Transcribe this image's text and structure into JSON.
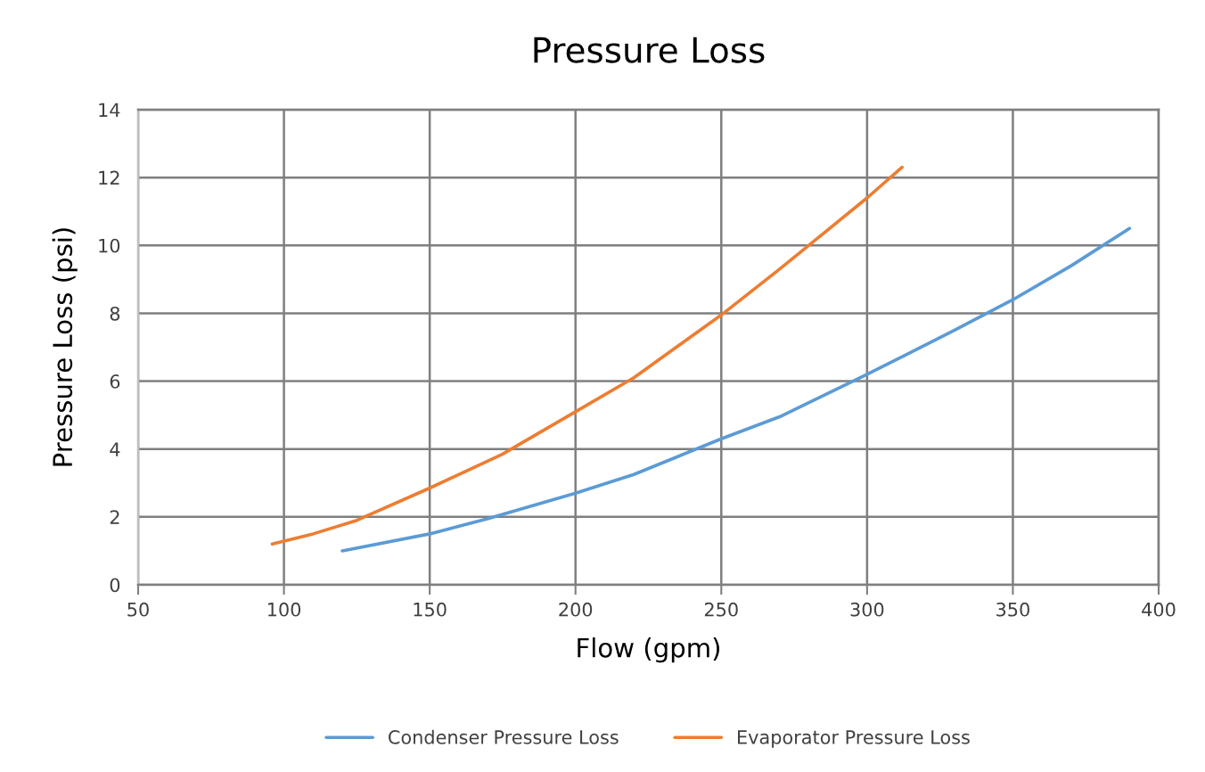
{
  "chart_data": {
    "type": "line",
    "title": "Pressure Loss",
    "xlabel": "Flow (gpm)",
    "ylabel": "Pressure Loss (psi)",
    "xlim": [
      50,
      400
    ],
    "xticks": [
      50,
      100,
      150,
      200,
      250,
      300,
      350,
      400
    ],
    "ylim": [
      0,
      14
    ],
    "yticks": [
      0,
      2,
      4,
      6,
      8,
      10,
      12,
      14
    ],
    "grid": true,
    "legend": "bottom",
    "marker": "none",
    "line_style": "solid",
    "series": [
      {
        "name": "Condenser Pressure Loss",
        "color": "#5b9bd5",
        "x": [
          120,
          150,
          170,
          200,
          220,
          250,
          270,
          300,
          330,
          350,
          370,
          390
        ],
        "values": [
          1.0,
          1.5,
          1.95,
          2.7,
          3.25,
          4.3,
          4.95,
          6.2,
          7.5,
          8.4,
          9.4,
          10.5
        ]
      },
      {
        "name": "Evaporator Pressure Loss",
        "color": "#ed7d31",
        "x": [
          96,
          110,
          125,
          150,
          175,
          200,
          220,
          250,
          270,
          290,
          300,
          312
        ],
        "values": [
          1.2,
          1.5,
          1.9,
          2.85,
          3.85,
          5.1,
          6.1,
          7.95,
          9.3,
          10.7,
          11.4,
          12.3
        ]
      }
    ]
  }
}
